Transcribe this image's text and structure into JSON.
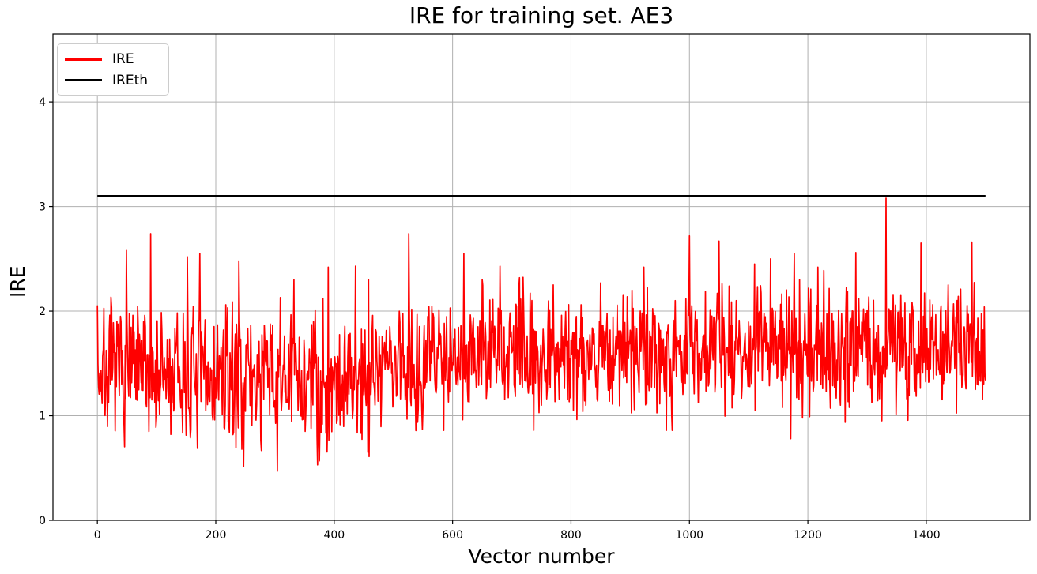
{
  "chart_data": {
    "type": "line",
    "title": "IRE for training set. AE3",
    "xlabel": "Vector number",
    "ylabel": "IRE",
    "xlim": [
      -75,
      1575
    ],
    "ylim": [
      0,
      4.65
    ],
    "xticks": [
      0,
      200,
      400,
      600,
      800,
      1000,
      1200,
      1400
    ],
    "yticks": [
      0,
      1,
      2,
      3,
      4
    ],
    "grid": true,
    "background_color": "#ffffff",
    "grid_color": "#b0b0b0",
    "spine_color": "#000000",
    "tick_label_color": "#000000",
    "legend": {
      "position": "upper-left",
      "entries": [
        {
          "label": "IRE",
          "color": "#ff0000"
        },
        {
          "label": "IREth",
          "color": "#000000"
        }
      ]
    },
    "series": [
      {
        "name": "IRE",
        "color": "#ff0000",
        "style": "noisy-line",
        "linewidth": 1.7,
        "n_points": 1501,
        "x_start": 0,
        "x_end": 1500,
        "observed_min": 0.46,
        "observed_max": 3.08,
        "seed": 7,
        "segments": [
          {
            "from": 0,
            "to": 100,
            "mean": 1.42,
            "std": 0.3,
            "min": 0.55,
            "max": 2.45
          },
          {
            "from": 100,
            "to": 460,
            "mean": 1.35,
            "std": 0.33,
            "min": 0.46,
            "max": 2.58
          },
          {
            "from": 460,
            "to": 560,
            "mean": 1.5,
            "std": 0.32,
            "min": 0.72,
            "max": 2.45
          },
          {
            "from": 560,
            "to": 1000,
            "mean": 1.6,
            "std": 0.28,
            "min": 0.86,
            "max": 2.55
          },
          {
            "from": 1000,
            "to": 1501,
            "mean": 1.66,
            "std": 0.29,
            "min": 0.77,
            "max": 2.7
          }
        ],
        "spikes": [
          [
            0,
            2.05
          ],
          [
            49,
            2.58
          ],
          [
            90,
            2.74
          ],
          [
            152,
            2.52
          ],
          [
            173,
            2.55
          ],
          [
            239,
            2.48
          ],
          [
            304,
            0.47
          ],
          [
            332,
            2.3
          ],
          [
            372,
            0.53
          ],
          [
            390,
            2.42
          ],
          [
            436,
            2.43
          ],
          [
            458,
            2.3
          ],
          [
            510,
            2.0
          ],
          [
            526,
            2.74
          ],
          [
            619,
            2.55
          ],
          [
            650,
            2.3
          ],
          [
            680,
            2.43
          ],
          [
            713,
            2.32
          ],
          [
            770,
            2.25
          ],
          [
            850,
            2.27
          ],
          [
            903,
            2.2
          ],
          [
            923,
            2.42
          ],
          [
            1000,
            2.72
          ],
          [
            1050,
            2.67
          ],
          [
            1110,
            2.45
          ],
          [
            1137,
            2.5
          ],
          [
            1171,
            0.78
          ],
          [
            1177,
            2.55
          ],
          [
            1217,
            2.42
          ],
          [
            1281,
            2.56
          ],
          [
            1332,
            3.08
          ],
          [
            1391,
            2.65
          ],
          [
            1437,
            2.25
          ],
          [
            1477,
            2.66
          ]
        ]
      },
      {
        "name": "IREth",
        "color": "#000000",
        "style": "hline",
        "value": 3.1,
        "x_start": 0,
        "x_end": 1500,
        "linewidth": 2.6
      }
    ]
  }
}
